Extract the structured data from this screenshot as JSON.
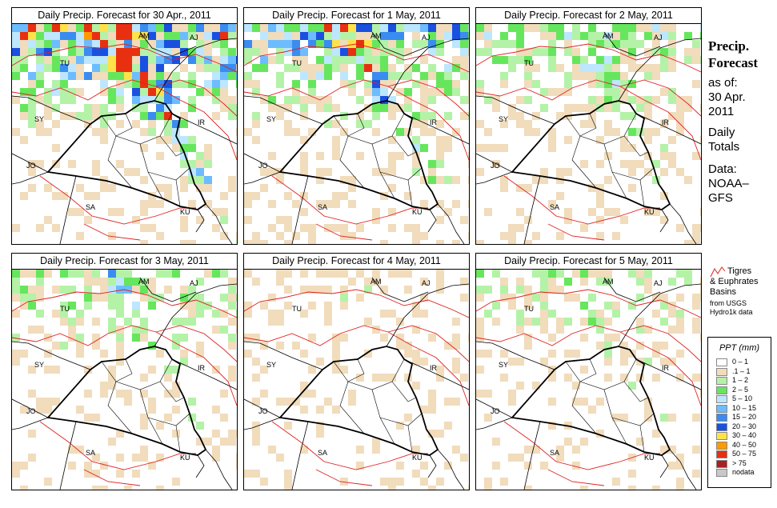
{
  "panels": [
    {
      "title": "Daily Precip. Forecast for  30 Apr., 2011",
      "intensity": 1.0
    },
    {
      "title": "Daily Precip. Forecast for  1 May, 2011",
      "intensity": 0.75
    },
    {
      "title": "Daily Precip. Forecast for  2 May, 2011",
      "intensity": 0.45
    },
    {
      "title": "Daily Precip. Forecast for  3 May, 2011",
      "intensity": 0.4
    },
    {
      "title": "Daily Precip. Forecast for  4 May, 2011",
      "intensity": 0.12
    },
    {
      "title": "Daily Precip. Forecast for  5 May, 2011",
      "intensity": 0.28
    }
  ],
  "map_labels": [
    "AM",
    "AJ",
    "TU",
    "SY",
    "IR",
    "JO",
    "SA",
    "KU"
  ],
  "sidebar": {
    "title1": "Precip.",
    "title2": "Forecast",
    "asof": "as of:",
    "date1": "30 Apr.",
    "date2": "2011",
    "daily1": "Daily",
    "daily2": "Totals",
    "data1": "Data:",
    "data2": "NOAA–",
    "data3": "GFS"
  },
  "basins": {
    "line1": "Tigres",
    "line2": "& Euphrates",
    "line3": "Basins",
    "line4": "from USGS",
    "line5": "Hydro1k data"
  },
  "legend": {
    "title": "PPT (mm)",
    "items": [
      {
        "label": "0 – 1",
        "color": "#ffffff"
      },
      {
        "label": ".1 – 1",
        "color": "#f1dcbc"
      },
      {
        "label": "1 – 2",
        "color": "#b4f2a8"
      },
      {
        "label": "2 – 5",
        "color": "#66e65c"
      },
      {
        "label": "5 – 10",
        "color": "#bde6ff"
      },
      {
        "label": "10 – 15",
        "color": "#6cbcff"
      },
      {
        "label": "15 – 20",
        "color": "#3a8cf0"
      },
      {
        "label": "20 – 30",
        "color": "#1a50e0"
      },
      {
        "label": "30 – 40",
        "color": "#ffe24a"
      },
      {
        "label": "40 – 50",
        "color": "#ff9a00"
      },
      {
        "label": "50 – 75",
        "color": "#e83010"
      },
      {
        "label": "> 75",
        "color": "#a82020"
      },
      {
        "label": "nodata",
        "color": "#c8c8c8"
      }
    ]
  }
}
